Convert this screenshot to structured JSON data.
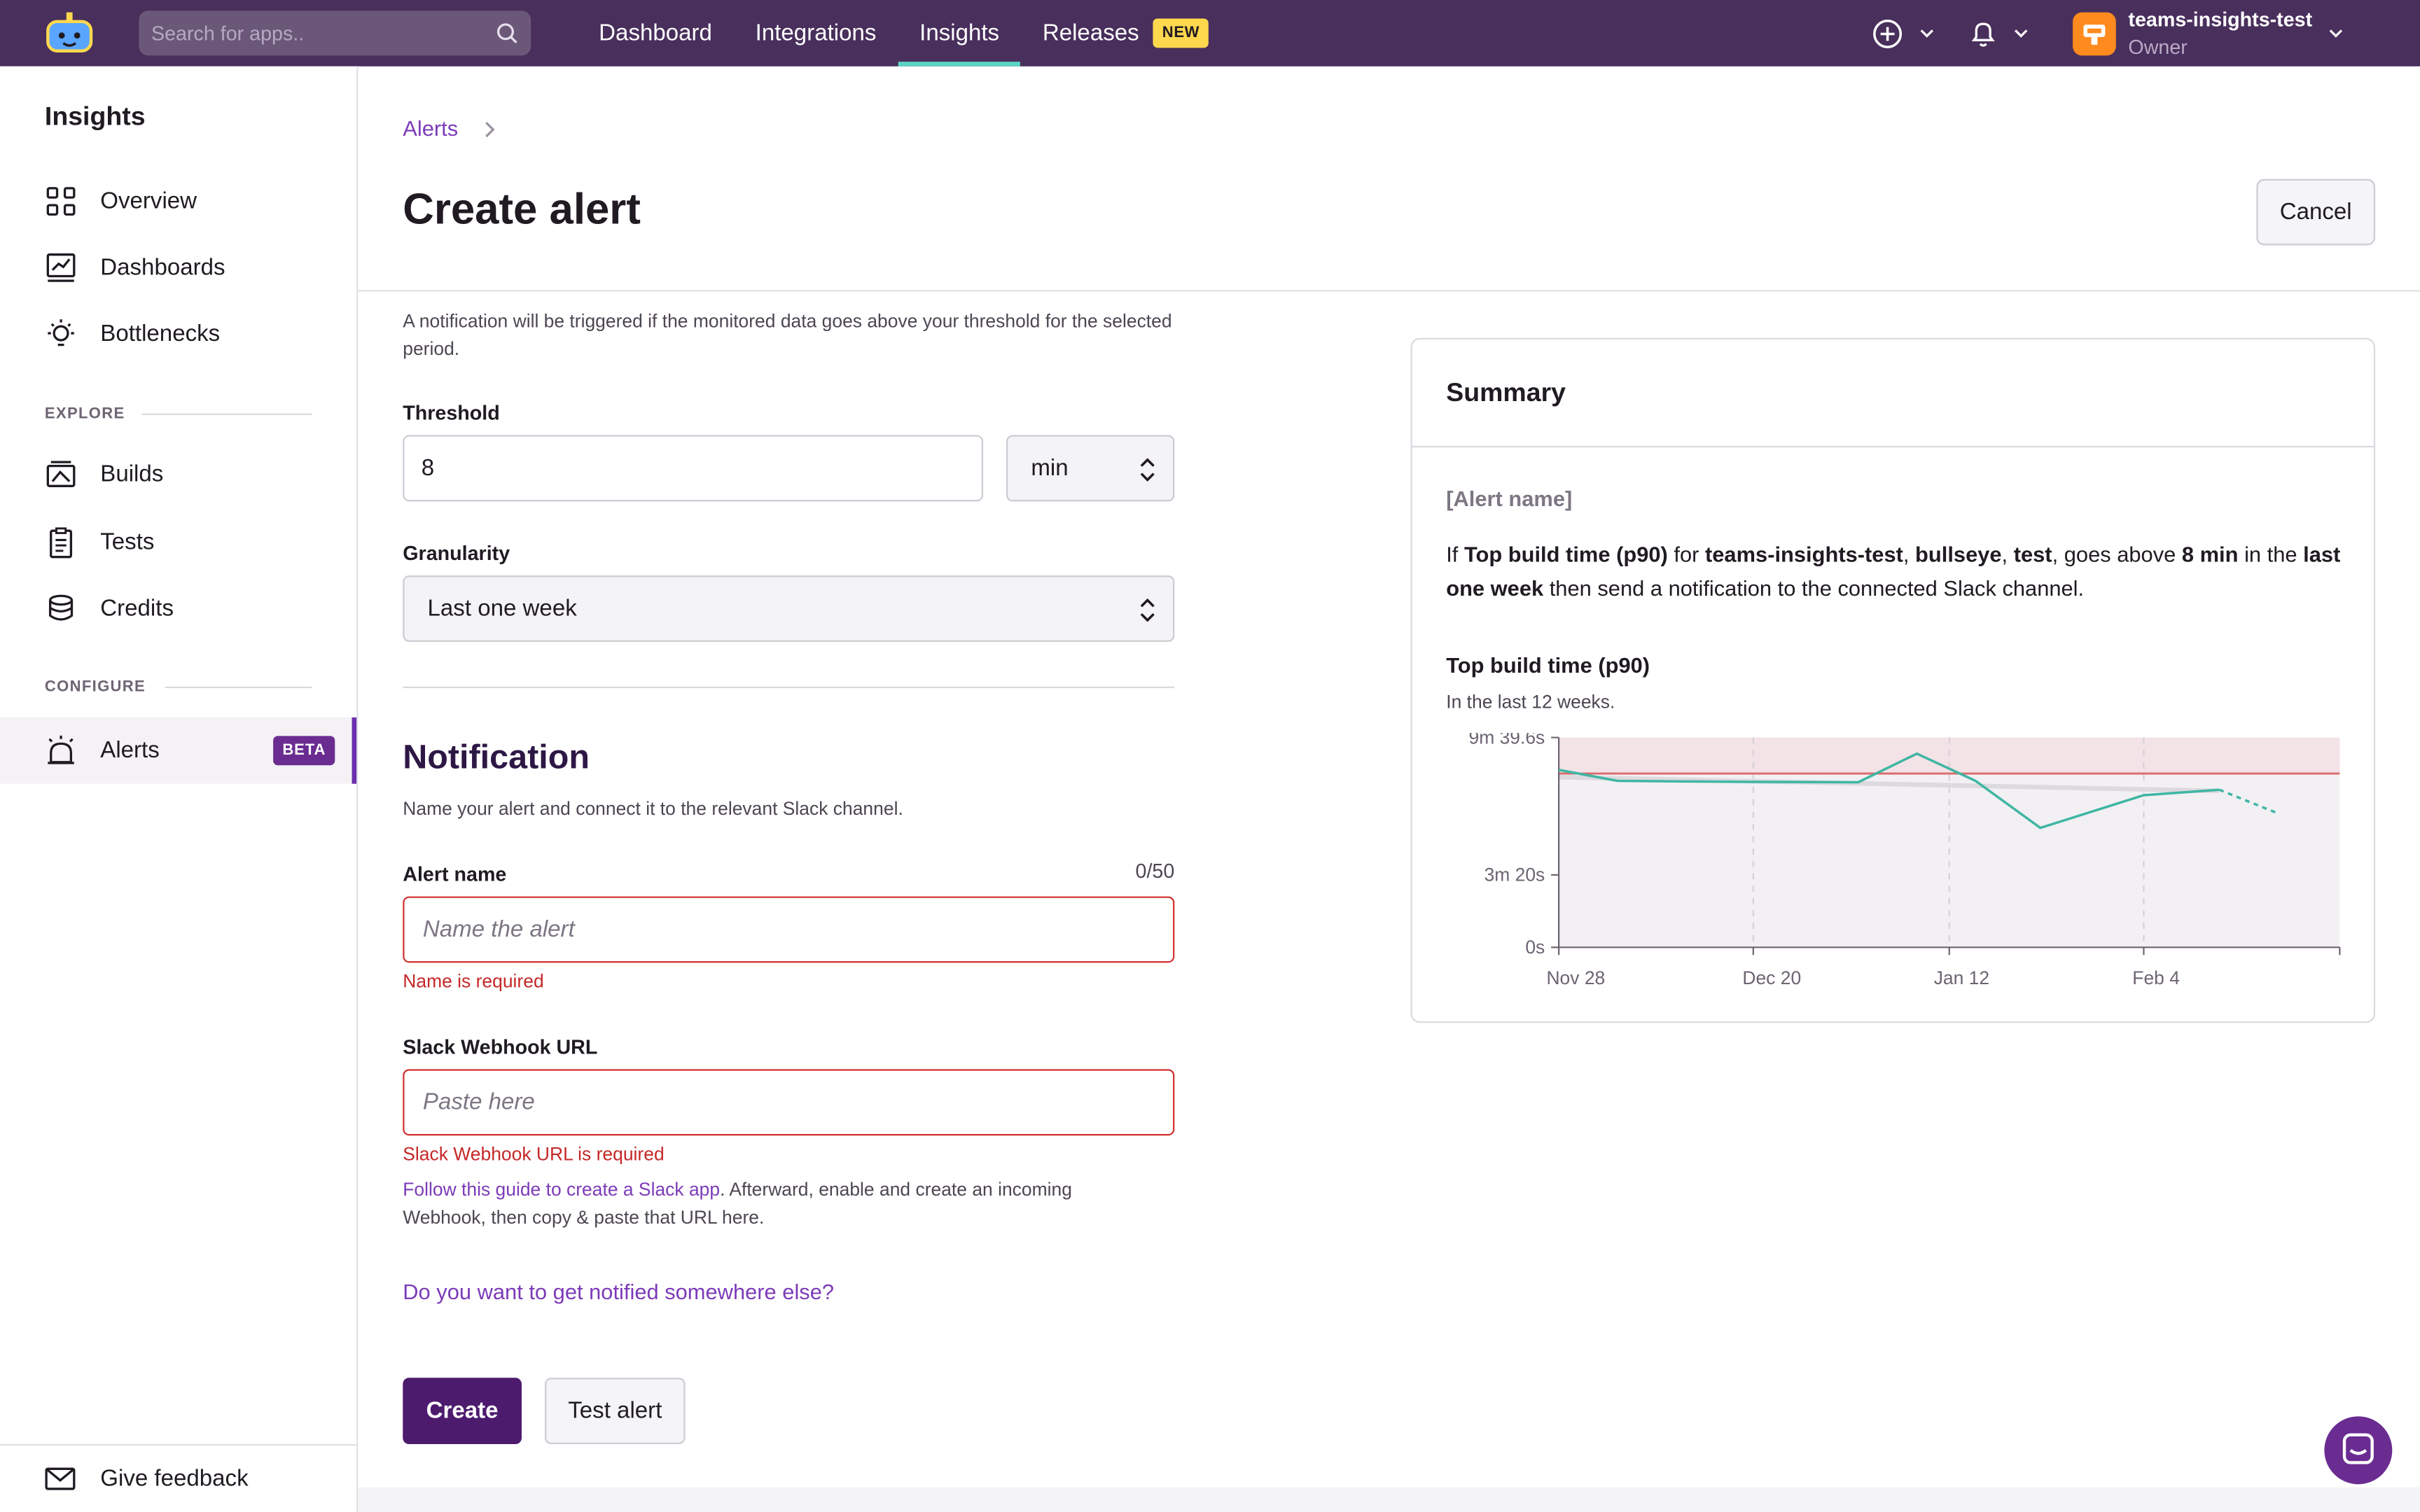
{
  "topbar": {
    "search_placeholder": "Search for apps..",
    "nav": [
      {
        "label": "Dashboard"
      },
      {
        "label": "Integrations"
      },
      {
        "label": "Insights"
      },
      {
        "label": "Releases",
        "badge": "NEW"
      }
    ],
    "active_nav": "Insights",
    "org_name": "teams-insights-test",
    "org_role": "Owner"
  },
  "sidebar": {
    "title": "Insights",
    "items": [
      {
        "label": "Overview",
        "icon": "grid-icon"
      },
      {
        "label": "Dashboards",
        "icon": "chart-icon"
      },
      {
        "label": "Bottlenecks",
        "icon": "bulb-icon"
      }
    ],
    "explore_label": "EXPLORE",
    "explore_items": [
      {
        "label": "Builds",
        "icon": "builds-icon"
      },
      {
        "label": "Tests",
        "icon": "clipboard-icon"
      },
      {
        "label": "Credits",
        "icon": "coins-icon"
      }
    ],
    "configure_label": "CONFIGURE",
    "configure_items": [
      {
        "label": "Alerts",
        "icon": "alarm-icon",
        "badge": "BETA",
        "active": true
      }
    ],
    "feedback_label": "Give feedback"
  },
  "header": {
    "breadcrumb": "Alerts",
    "title": "Create alert",
    "cancel_label": "Cancel"
  },
  "form": {
    "intro": "A notification will be triggered if the monitored data goes above your threshold for the selected period.",
    "threshold_label": "Threshold",
    "threshold_value": "8",
    "threshold_unit": "min",
    "granularity_label": "Granularity",
    "granularity_value": "Last one week",
    "notification_title": "Notification",
    "notification_desc": "Name your alert and connect it to the relevant Slack channel.",
    "alert_name_label": "Alert name",
    "alert_name_counter": "0/50",
    "alert_name_placeholder": "Name the alert",
    "alert_name_error": "Name is required",
    "webhook_label": "Slack Webhook URL",
    "webhook_placeholder": "Paste here",
    "webhook_error": "Slack Webhook URL is required",
    "help_link": "Follow this guide to create a Slack app",
    "help_text": ". Afterward, enable and create an incoming Webhook, then copy & paste that URL here.",
    "other_link": "Do you want to get notified somewhere else?",
    "create_label": "Create",
    "test_label": "Test alert"
  },
  "summary": {
    "title": "Summary",
    "alert_name_placeholder": "[Alert name]",
    "s_if": "If ",
    "s_metric": "Top build time (p90)",
    "s_for": " for ",
    "s_app": "teams-insights-test",
    "s_comma1": ", ",
    "s_workflow": "bullseye",
    "s_comma2": ", ",
    "s_branch": "test",
    "s_goes": ", goes above ",
    "s_threshold": "8 min",
    "s_in": " in the ",
    "s_period": "last one week",
    "s_then": " then send a notification to the connected Slack channel.",
    "chart_title": "Top build time (p90)",
    "chart_subtitle": "In the last 12 weeks."
  },
  "chart_data": {
    "type": "line",
    "y_ticks": [
      "0s",
      "3m 20s",
      "9m 39.6s"
    ],
    "x_ticks": [
      "Nov 28",
      "Dec 20",
      "Jan 12",
      "Feb 4"
    ],
    "ylim": [
      0,
      579.6
    ],
    "threshold_seconds": 480,
    "series": [
      {
        "values_seconds": [
          490,
          460,
          458,
          457,
          456,
          535,
          460,
          330,
          420,
          435
        ],
        "projected_values_seconds": [
          435,
          370
        ]
      }
    ],
    "colors": {
      "series": "#3fb6a3",
      "threshold": "#d96a6a",
      "threshold_band": "#f3e2e6",
      "plot_bg": "#f2f0f3"
    }
  },
  "colors": {
    "topbar": "#492f5c",
    "accent": "#7c3bb8",
    "nav_active": "#5cd3c4",
    "error": "#c62828",
    "primary_button": "#4d1b6e"
  }
}
